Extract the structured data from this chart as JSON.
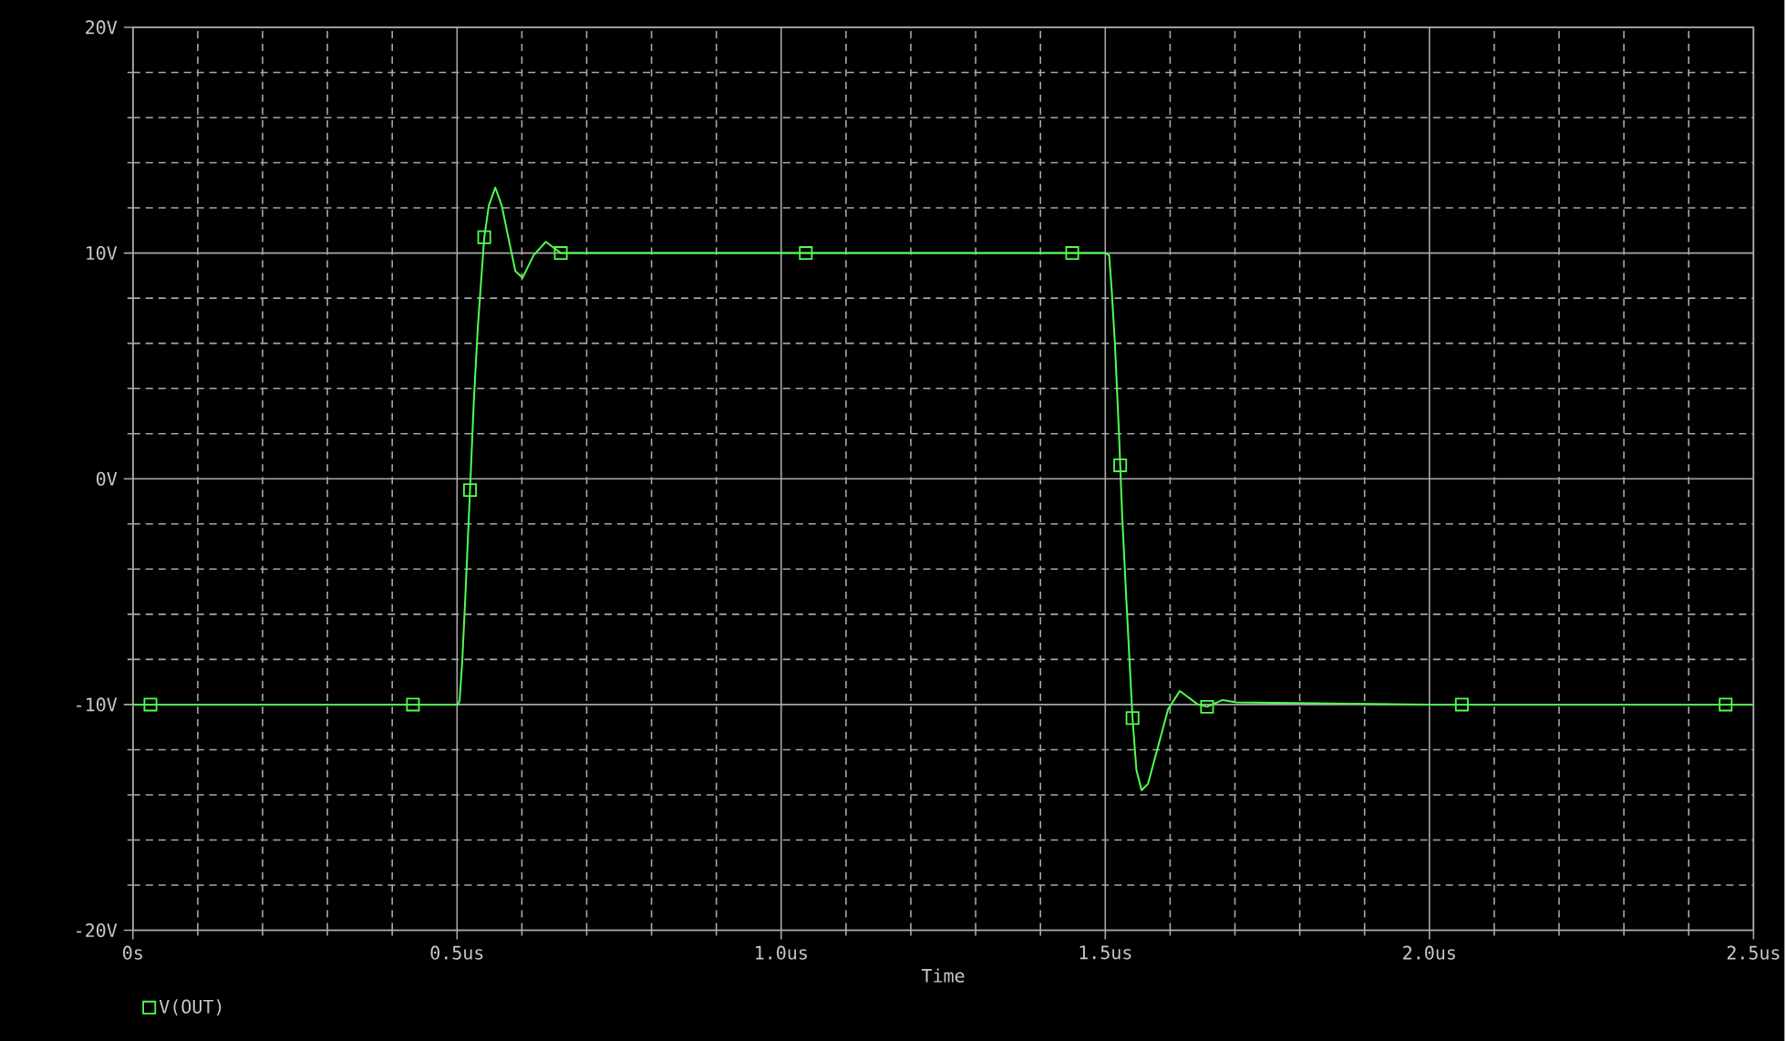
{
  "chart_data": {
    "type": "line",
    "xlabel": "Time",
    "xlim": [
      0,
      2.5
    ],
    "ylim": [
      -20,
      20
    ],
    "xticks": [
      {
        "value": 0,
        "label": "0s"
      },
      {
        "value": 0.5,
        "label": "0.5us"
      },
      {
        "value": 1.0,
        "label": "1.0us"
      },
      {
        "value": 1.5,
        "label": "1.5us"
      },
      {
        "value": 2.0,
        "label": "2.0us"
      },
      {
        "value": 2.5,
        "label": "2.5us"
      }
    ],
    "yticks": [
      {
        "value": -20,
        "label": "-20V"
      },
      {
        "value": -10,
        "label": "-10V"
      },
      {
        "value": 0,
        "label": "0V"
      },
      {
        "value": 10,
        "label": "10V"
      },
      {
        "value": 20,
        "label": "20V"
      }
    ],
    "grid": true,
    "legend": "bottom left",
    "series": [
      {
        "color": "#50ff50",
        "marker": "none",
        "x": [
          0,
          0.502,
          0.504,
          0.508,
          0.513,
          0.52,
          0.526,
          0.532,
          0.538,
          0.542,
          0.549,
          0.559,
          0.569,
          0.579,
          0.59,
          0.601,
          0.618,
          0.637,
          0.66,
          0.684,
          0.702,
          1.0,
          1.5,
          1.506,
          1.51,
          1.515,
          1.521,
          1.526,
          1.532,
          1.538,
          1.542,
          1.548,
          1.556,
          1.566,
          1.581,
          1.597,
          1.615,
          1.643,
          1.657,
          1.681,
          1.702,
          2.0,
          2.5
        ],
        "values": [
          -10,
          -10,
          -9.8,
          -8.1,
          -5.1,
          -0.5,
          3.5,
          6.7,
          9.1,
          10.7,
          12.1,
          12.9,
          12.1,
          10.7,
          9.2,
          8.9,
          9.9,
          10.5,
          10.0,
          10.0,
          10.0,
          10.0,
          10.0,
          9.9,
          8.3,
          5.9,
          2.1,
          -1.6,
          -5.1,
          -8.4,
          -10.6,
          -12.9,
          -13.8,
          -13.5,
          -11.9,
          -10.2,
          -9.4,
          -10.0,
          -10.1,
          -9.8,
          -9.9,
          -10,
          -10
        ]
      },
      {
        "type": "scatter",
        "name": "V(OUT)",
        "color": "#50ff50",
        "marker": "square",
        "x": [
          0.027,
          0.432,
          0.52,
          0.542,
          0.66,
          1.038,
          1.449,
          1.523,
          1.542,
          1.657,
          2.05,
          2.457
        ],
        "values": [
          -10,
          -10,
          -0.5,
          10.7,
          10.0,
          10,
          10,
          0.6,
          -10.6,
          -10.1,
          -10,
          -10
        ]
      }
    ]
  }
}
